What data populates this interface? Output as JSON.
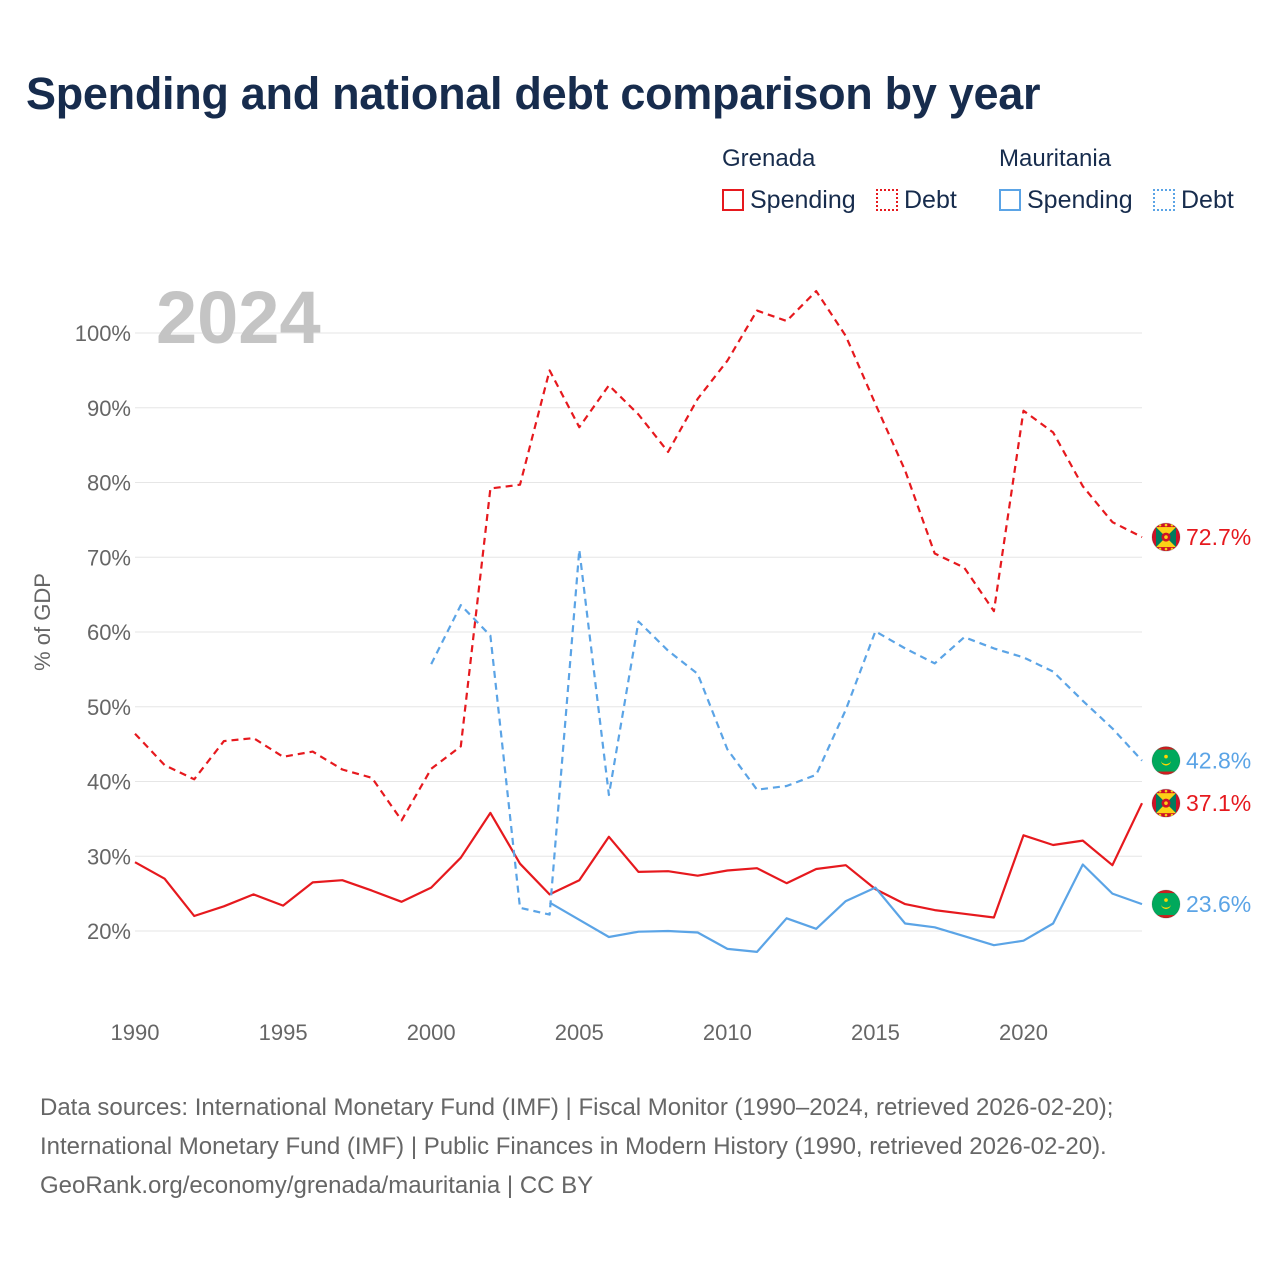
{
  "title": "Spending and national debt comparison by year",
  "legend": {
    "groups": [
      {
        "name": "Grenada",
        "color": "#e6191e",
        "items": [
          {
            "label": "Spending",
            "style": "solid"
          },
          {
            "label": "Debt",
            "style": "dotted"
          }
        ]
      },
      {
        "name": "Mauritania",
        "color": "#5ba4e6",
        "items": [
          {
            "label": "Spending",
            "style": "solid"
          },
          {
            "label": "Debt",
            "style": "dotted"
          }
        ]
      }
    ]
  },
  "footer": {
    "line1": "Data sources: International Monetary Fund (IMF) | Fiscal Monitor (1990–2024, retrieved 2026-02-20);",
    "line2": "International Monetary Fund (IMF) | Public Finances in Modern History (1990, retrieved 2026-02-20).",
    "line3": "GeoRank.org/economy/grenada/mauritania | CC BY"
  },
  "chart_data": {
    "type": "line",
    "title": "Spending and national debt comparison by year",
    "year_label": "2024",
    "xlabel": "",
    "ylabel": "% of GDP",
    "xlim": [
      1990,
      2024
    ],
    "ylim": [
      10,
      107
    ],
    "x_ticks": [
      1990,
      1995,
      2000,
      2005,
      2010,
      2015,
      2020
    ],
    "y_ticks": [
      20,
      30,
      40,
      50,
      60,
      70,
      80,
      90,
      100
    ],
    "y_tick_labels": [
      "20%",
      "30%",
      "40%",
      "50%",
      "60%",
      "70%",
      "80%",
      "90%",
      "100%"
    ],
    "grid": true,
    "x": [
      1990,
      1991,
      1992,
      1993,
      1994,
      1995,
      1996,
      1997,
      1998,
      1999,
      2000,
      2001,
      2002,
      2003,
      2004,
      2005,
      2006,
      2007,
      2008,
      2009,
      2010,
      2011,
      2012,
      2013,
      2014,
      2015,
      2016,
      2017,
      2018,
      2019,
      2020,
      2021,
      2022,
      2023,
      2024
    ],
    "series": [
      {
        "name": "Grenada Debt",
        "country": "Grenada",
        "metric": "Debt",
        "color": "#e6191e",
        "dash": true,
        "flag": "grenada",
        "end_label": "72.7%",
        "values": [
          46.4,
          42.2,
          40.3,
          45.4,
          45.8,
          43.3,
          44.0,
          41.6,
          40.5,
          34.8,
          41.7,
          44.7,
          79.2,
          79.7,
          95.0,
          87.4,
          93.0,
          89.1,
          84.1,
          91.2,
          96.3,
          103.0,
          101.6,
          105.6,
          99.6,
          90.5,
          81.6,
          70.5,
          68.6,
          62.8,
          89.6,
          86.7,
          79.5,
          74.7,
          72.7
        ]
      },
      {
        "name": "Grenada Spending",
        "country": "Grenada",
        "metric": "Spending",
        "color": "#e6191e",
        "dash": false,
        "flag": "grenada",
        "end_label": "37.1%",
        "values": [
          29.2,
          27.0,
          22.0,
          23.3,
          24.9,
          23.4,
          26.5,
          26.8,
          25.4,
          23.9,
          25.8,
          29.8,
          35.8,
          29.0,
          24.9,
          26.8,
          32.6,
          27.9,
          28.0,
          27.4,
          28.1,
          28.4,
          26.4,
          28.3,
          28.8,
          25.6,
          23.6,
          22.8,
          22.3,
          21.8,
          32.8,
          31.5,
          32.1,
          28.8,
          37.1
        ]
      },
      {
        "name": "Mauritania Debt",
        "country": "Mauritania",
        "metric": "Debt",
        "color": "#5ba4e6",
        "dash": true,
        "flag": "mauritania",
        "end_label": "42.8%",
        "values": [
          null,
          null,
          null,
          null,
          null,
          null,
          null,
          null,
          null,
          null,
          55.7,
          63.6,
          59.5,
          23.1,
          22.2,
          71.0,
          38.2,
          61.4,
          57.5,
          54.4,
          44.3,
          38.9,
          39.4,
          40.9,
          49.6,
          60.1,
          57.8,
          55.8,
          59.3,
          57.8,
          56.6,
          54.7,
          50.8,
          47.1,
          42.8
        ]
      },
      {
        "name": "Mauritania Spending",
        "country": "Mauritania",
        "metric": "Spending",
        "color": "#5ba4e6",
        "dash": false,
        "flag": "mauritania",
        "end_label": "23.6%",
        "values": [
          null,
          null,
          null,
          null,
          null,
          null,
          null,
          null,
          null,
          null,
          null,
          null,
          null,
          null,
          23.8,
          21.5,
          19.2,
          19.9,
          20.0,
          19.8,
          17.6,
          17.2,
          21.7,
          20.3,
          24.0,
          25.8,
          21.0,
          20.5,
          19.3,
          18.1,
          18.7,
          21.0,
          28.9,
          25.0,
          23.6
        ]
      }
    ]
  }
}
